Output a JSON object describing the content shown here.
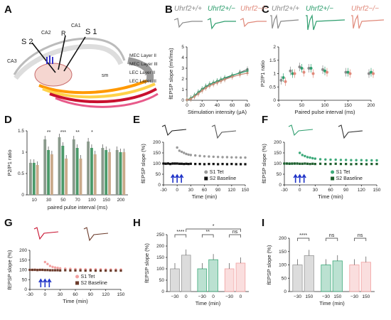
{
  "panels": {
    "A": {
      "label": "A",
      "regions": [
        "CA1",
        "CA2",
        "CA3",
        "S 1",
        "S 2",
        "R",
        "sm"
      ],
      "layers": [
        "MEC Layer II",
        "MEC Layer III",
        "LEC Layer II",
        "LEC Layer III"
      ]
    },
    "B": {
      "label": "B"
    },
    "C": {
      "label": "C"
    },
    "D": {
      "label": "D"
    },
    "E": {
      "label": "E"
    },
    "F": {
      "label": "F"
    },
    "G": {
      "label": "G"
    },
    "H": {
      "label": "H"
    },
    "I": {
      "label": "I"
    }
  },
  "genotypes": [
    {
      "label": "Uhrf2+/+",
      "color": "#8a8a8a"
    },
    {
      "label": "Uhrf2+/−",
      "color": "#2e9e6e"
    },
    {
      "label": "Uhrf2−/−",
      "color": "#e0897a"
    }
  ],
  "chart_data": [
    {
      "panel": "B",
      "type": "line",
      "xlabel": "Stimulation intensity (μA)",
      "ylabel": "fEPSP slope (mV/ms)",
      "xlim": [
        0,
        80
      ],
      "ylim": [
        0,
        5
      ],
      "xticks": [
        0,
        20,
        40,
        60,
        80
      ],
      "yticks": [
        0,
        1,
        2,
        3,
        4,
        5
      ],
      "x": [
        0,
        5,
        10,
        15,
        20,
        25,
        30,
        35,
        40,
        45,
        50,
        60,
        70,
        80
      ],
      "series": [
        {
          "name": "Uhrf2+/+",
          "color": "#6e6e6e",
          "values": [
            0.05,
            0.15,
            0.4,
            0.7,
            1.0,
            1.25,
            1.45,
            1.6,
            1.75,
            1.85,
            2.0,
            2.3,
            2.6,
            2.9
          ]
        },
        {
          "name": "Uhrf2+/−",
          "color": "#2e9e6e",
          "values": [
            0.05,
            0.2,
            0.45,
            0.75,
            1.05,
            1.3,
            1.5,
            1.65,
            1.8,
            1.95,
            2.1,
            2.35,
            2.55,
            2.75
          ]
        },
        {
          "name": "Uhrf2−/−",
          "color": "#c8907a",
          "values": [
            0.05,
            0.12,
            0.35,
            0.6,
            0.9,
            1.15,
            1.35,
            1.5,
            1.65,
            1.8,
            1.95,
            2.2,
            2.4,
            2.55
          ]
        }
      ]
    },
    {
      "panel": "C",
      "type": "scatter",
      "xlabel": "Paired pulse interval (ms)",
      "ylabel": "P2/P1 ratio",
      "xlim": [
        0,
        200
      ],
      "ylim": [
        0,
        2.0
      ],
      "xticks": [
        0,
        50,
        100,
        150,
        200
      ],
      "yticks": [
        0,
        0.5,
        1.0,
        1.5,
        2.0
      ],
      "x": [
        10,
        30,
        50,
        70,
        100,
        150,
        200
      ],
      "series": [
        {
          "name": "Uhrf2+/+",
          "color": "#8a8a8a",
          "values": [
            0.75,
            1.1,
            1.25,
            1.2,
            1.15,
            1.05,
            1.0
          ]
        },
        {
          "name": "Uhrf2+/−",
          "color": "#2e9e6e",
          "values": [
            0.85,
            1.0,
            1.2,
            1.2,
            1.1,
            1.05,
            1.05
          ]
        },
        {
          "name": "Uhrf2−/−",
          "color": "#e0897a",
          "values": [
            0.7,
            1.0,
            1.05,
            1.0,
            1.05,
            1.0,
            1.0
          ]
        }
      ]
    },
    {
      "panel": "D",
      "type": "bar",
      "xlabel": "paired pulse interval (ms)",
      "ylabel": "P2/P1 ratio",
      "ylim": [
        0,
        1.5
      ],
      "yticks": [
        0,
        0.5,
        1.0,
        1.5
      ],
      "categories": [
        "10",
        "30",
        "50",
        "70",
        "100",
        "150",
        "200"
      ],
      "significance": [
        "",
        "**",
        "***",
        "**",
        "*",
        "",
        ""
      ],
      "series": [
        {
          "name": "Uhrf2+/+",
          "color": "#8a9a8c",
          "values": [
            0.75,
            1.3,
            1.35,
            1.3,
            1.25,
            1.1,
            1.05
          ]
        },
        {
          "name": "Uhrf2+/−",
          "color": "#4b9a6a",
          "values": [
            0.75,
            1.05,
            1.15,
            1.1,
            1.1,
            1.05,
            1.0
          ]
        },
        {
          "name": "Uhrf2−/−",
          "color": "#c9a98a",
          "values": [
            0.7,
            0.95,
            0.85,
            0.85,
            0.95,
            1.0,
            1.0
          ]
        }
      ]
    },
    {
      "panel": "E",
      "type": "scatter",
      "xlabel": "Time (min)",
      "ylabel": "fEPSP slope (%)",
      "xlim": [
        -30,
        150
      ],
      "ylim": [
        0,
        200
      ],
      "xticks": [
        -30,
        0,
        30,
        60,
        90,
        120,
        150
      ],
      "yticks": [
        0,
        50,
        100,
        150,
        200
      ],
      "legend": [
        "S1 Tet",
        "S2 Baseline"
      ],
      "series": [
        {
          "name": "S1 Tet",
          "color": "#9a9a9a",
          "x": [
            -30,
            -25,
            -20,
            -15,
            -10,
            -5,
            0,
            5,
            10,
            15,
            20,
            25,
            30,
            40,
            50,
            60,
            70,
            80,
            90,
            100,
            110,
            120,
            130,
            140,
            150
          ],
          "values": [
            100,
            100,
            101,
            99,
            100,
            100,
            175,
            160,
            155,
            150,
            145,
            142,
            140,
            138,
            136,
            134,
            133,
            132,
            131,
            130,
            130,
            129,
            129,
            128,
            128
          ]
        },
        {
          "name": "S2 Baseline",
          "color": "#111111",
          "x": [
            -30,
            -25,
            -20,
            -15,
            -10,
            -5,
            0,
            5,
            10,
            15,
            20,
            25,
            30,
            40,
            50,
            60,
            70,
            80,
            90,
            100,
            110,
            120,
            130,
            140,
            150
          ],
          "values": [
            100,
            99,
            100,
            98,
            100,
            100,
            100,
            99,
            99,
            98,
            99,
            98,
            99,
            98,
            98,
            97,
            98,
            98,
            97,
            98,
            97,
            98,
            97,
            97,
            97
          ]
        }
      ]
    },
    {
      "panel": "F",
      "type": "scatter",
      "xlabel": "Time (min)",
      "ylabel": "fEPSP slope (%)",
      "xlim": [
        -30,
        150
      ],
      "ylim": [
        0,
        200
      ],
      "xticks": [
        -30,
        0,
        30,
        60,
        90,
        120,
        150
      ],
      "yticks": [
        0,
        50,
        100,
        150,
        200
      ],
      "legend": [
        "S1 Tet",
        "S2 Baseline"
      ],
      "series": [
        {
          "name": "S1 Tet",
          "color": "#3daa7a",
          "x": [
            -30,
            -25,
            -20,
            -15,
            -10,
            -5,
            0,
            5,
            10,
            15,
            20,
            25,
            30,
            40,
            50,
            60,
            70,
            80,
            90,
            100,
            110,
            120,
            130,
            140,
            150
          ],
          "values": [
            100,
            100,
            100,
            99,
            100,
            100,
            150,
            140,
            135,
            130,
            128,
            125,
            123,
            120,
            119,
            118,
            118,
            117,
            117,
            116,
            116,
            116,
            115,
            115,
            115
          ]
        },
        {
          "name": "S2 Baseline",
          "color": "#1f5e2e",
          "x": [
            -30,
            -25,
            -20,
            -15,
            -10,
            -5,
            0,
            5,
            10,
            15,
            20,
            25,
            30,
            40,
            50,
            60,
            70,
            80,
            90,
            100,
            110,
            120,
            130,
            140,
            150
          ],
          "values": [
            100,
            100,
            99,
            100,
            100,
            100,
            99,
            99,
            100,
            99,
            98,
            99,
            98,
            99,
            98,
            98,
            99,
            98,
            98,
            97,
            98,
            98,
            97,
            98,
            98
          ]
        }
      ]
    },
    {
      "panel": "G",
      "type": "scatter",
      "xlabel": "Time (min)",
      "ylabel": "fEPSP slope (%)",
      "xlim": [
        -30,
        150
      ],
      "ylim": [
        0,
        200
      ],
      "xticks": [
        -30,
        0,
        30,
        60,
        90,
        120,
        150
      ],
      "yticks": [
        0,
        50,
        100,
        150,
        200
      ],
      "legend": [
        "S1 Tet",
        "S2 Baseline"
      ],
      "series": [
        {
          "name": "S1 Tet",
          "color": "#f2a0a0",
          "x": [
            -30,
            -25,
            -20,
            -15,
            -10,
            -5,
            0,
            5,
            10,
            15,
            20,
            25,
            30,
            40,
            50,
            60,
            70,
            80,
            90,
            100,
            110,
            120,
            130,
            140,
            150
          ],
          "values": [
            100,
            100,
            101,
            100,
            100,
            100,
            140,
            130,
            120,
            115,
            112,
            110,
            108,
            106,
            105,
            104,
            104,
            103,
            103,
            103,
            103,
            102,
            102,
            102,
            102
          ]
        },
        {
          "name": "S2 Baseline",
          "color": "#6b3a2a",
          "x": [
            -30,
            -25,
            -20,
            -15,
            -10,
            -5,
            0,
            5,
            10,
            15,
            20,
            25,
            30,
            40,
            50,
            60,
            70,
            80,
            90,
            100,
            110,
            120,
            130,
            140,
            150
          ],
          "values": [
            100,
            100,
            100,
            99,
            100,
            100,
            99,
            99,
            98,
            98,
            98,
            98,
            97,
            98,
            97,
            97,
            97,
            96,
            97,
            96,
            96,
            96,
            96,
            96,
            96
          ]
        }
      ]
    },
    {
      "panel": "H",
      "type": "bar",
      "ylabel": "fEPSP slope (%)",
      "ylim": [
        0,
        250
      ],
      "yticks": [
        0,
        50,
        100,
        150,
        200,
        250
      ],
      "categories": [
        "−30",
        "0",
        "−30",
        "0",
        "−30",
        "0"
      ],
      "values": [
        100,
        160,
        100,
        140,
        100,
        125
      ],
      "colors": [
        "#9a9a9a",
        "#9a9a9a",
        "#3daa7a",
        "#3daa7a",
        "#f2a0a0",
        "#f2a0a0"
      ],
      "significance": [
        "****",
        "**",
        "ns",
        "*"
      ]
    },
    {
      "panel": "I",
      "type": "bar",
      "ylabel": "fEPSP slope (%)",
      "ylim": [
        0,
        200
      ],
      "yticks": [
        0,
        50,
        100,
        150,
        200
      ],
      "categories": [
        "−30",
        "150",
        "−30",
        "150",
        "−30",
        "150"
      ],
      "values": [
        100,
        135,
        100,
        115,
        100,
        110
      ],
      "colors": [
        "#9a9a9a",
        "#9a9a9a",
        "#3daa7a",
        "#3daa7a",
        "#f2a0a0",
        "#f2a0a0"
      ],
      "significance": [
        "****",
        "ns",
        "ns"
      ]
    }
  ]
}
